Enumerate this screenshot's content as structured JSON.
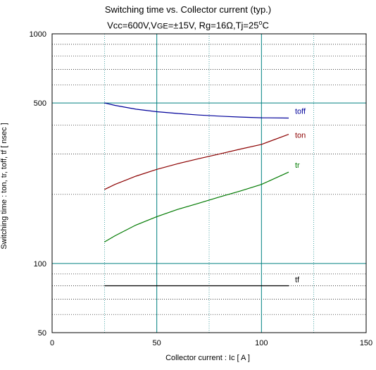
{
  "chart_data": {
    "type": "line",
    "title": "Switching time  vs.  Collector current  (typ.)",
    "subtitle": {
      "pre": "Vcc=600V,V",
      "sub": "GE",
      "mid": "=±15V, Rg=16Ω,Tj=25",
      "sup": "o",
      "post": "C"
    },
    "xlabel": "Collector current  :  Ic  [ A ]",
    "ylabel": "Switching time  :  ton, tr, toff, tf  [ nsec ]",
    "xlim": [
      0,
      150
    ],
    "ylim": [
      50,
      1000
    ],
    "y_scale": "log",
    "x_ticks": [
      0,
      50,
      100,
      150
    ],
    "x_tick_labels": [
      "0",
      "50",
      "100",
      "150"
    ],
    "y_ticks": [
      50,
      100,
      500,
      1000
    ],
    "y_tick_labels": [
      "50",
      "100",
      "500",
      "1000"
    ],
    "grid": true,
    "series": [
      {
        "name": "toff",
        "color": "#00009a",
        "x": [
          25,
          30,
          40,
          50,
          60,
          70,
          80,
          90,
          100,
          113
        ],
        "y": [
          500,
          488,
          470,
          458,
          450,
          443,
          438,
          434,
          431,
          430
        ]
      },
      {
        "name": "ton",
        "color": "#8c0000",
        "x": [
          25,
          30,
          40,
          50,
          60,
          70,
          80,
          90,
          100,
          113
        ],
        "y": [
          210,
          221,
          240,
          257,
          272,
          286,
          300,
          315,
          330,
          365
        ]
      },
      {
        "name": "tr",
        "color": "#007a00",
        "x": [
          25,
          30,
          40,
          50,
          60,
          70,
          80,
          90,
          100,
          113
        ],
        "y": [
          124,
          132,
          147,
          160,
          172,
          183,
          195,
          207,
          221,
          250
        ]
      },
      {
        "name": "tf",
        "color": "#000000",
        "x": [
          25,
          113
        ],
        "y": [
          80,
          80
        ]
      }
    ]
  }
}
